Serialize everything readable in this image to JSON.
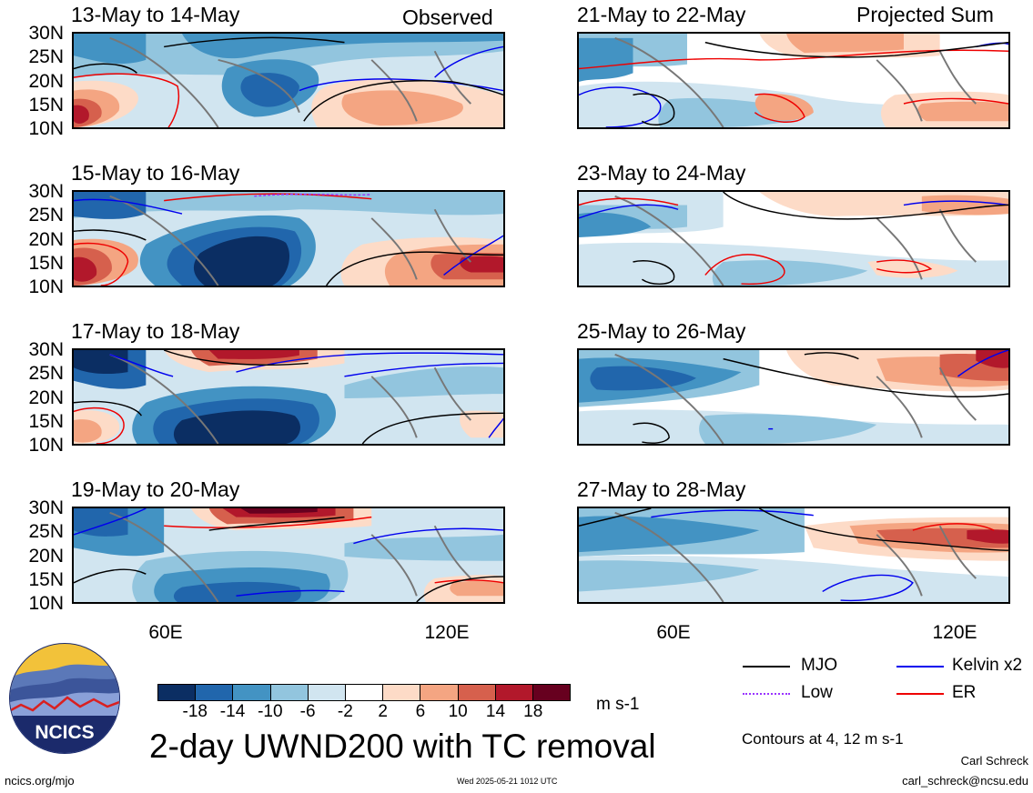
{
  "headers": {
    "left": "Observed",
    "right": "Projected Sum"
  },
  "latitudes": [
    "30N",
    "25N",
    "20N",
    "15N",
    "10N"
  ],
  "longitudes": [
    "60E",
    "120E"
  ],
  "panels": {
    "observed": [
      {
        "title": "13-May to 14-May"
      },
      {
        "title": "15-May to 16-May"
      },
      {
        "title": "17-May to 18-May"
      },
      {
        "title": "19-May to 20-May"
      }
    ],
    "projected": [
      {
        "title": "21-May to 22-May"
      },
      {
        "title": "23-May to 24-May"
      },
      {
        "title": "25-May to 26-May"
      },
      {
        "title": "27-May to 28-May"
      }
    ]
  },
  "colorbar": {
    "labels": [
      "-18",
      "-14",
      "-10",
      "-6",
      "-2",
      "2",
      "6",
      "10",
      "14",
      "18"
    ],
    "units": "m s-1",
    "colors": [
      "#0b2e63",
      "#2166ac",
      "#4393c3",
      "#92c5de",
      "#d1e5f0",
      "#ffffff",
      "#fddbc7",
      "#f4a582",
      "#d6604d",
      "#b2182b",
      "#67001f"
    ]
  },
  "legend": [
    {
      "label": "MJO",
      "color": "#000000"
    },
    {
      "label": "Kelvin x2",
      "color": "#0000ee"
    },
    {
      "label": "Low",
      "color": "#9933ff"
    },
    {
      "label": "ER",
      "color": "#ee0000"
    }
  ],
  "contour_note": "Contours at 4, 12 m s-1",
  "main_title": "2-day UWND200 with TC removal",
  "logo_text": "NCICS",
  "footer": {
    "url": "ncics.org/mjo",
    "timestamp": "Wed 2025-05-21 1012 UTC",
    "author": "Carl Schreck",
    "email": "carl_schreck@ncsu.edu"
  }
}
